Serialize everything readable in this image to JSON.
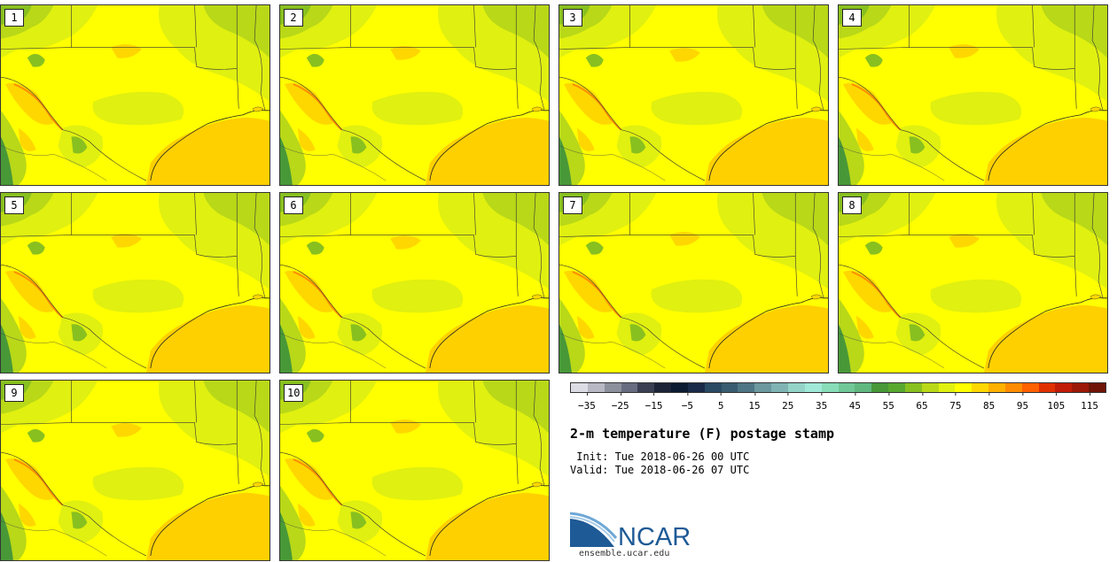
{
  "title": "2-m temperature (F) postage stamp",
  "init_line": " Init: Tue 2018-06-26 00 UTC",
  "valid_line": "Valid: Tue 2018-06-26 07 UTC",
  "panels": [
    "1",
    "2",
    "3",
    "4",
    "5",
    "6",
    "7",
    "8",
    "9",
    "10"
  ],
  "colorbar": {
    "ticks": [
      "-35",
      "-25",
      "-15",
      "-5",
      "5",
      "15",
      "25",
      "35",
      "45",
      "55",
      "65",
      "75",
      "85",
      "95",
      "105",
      "115"
    ],
    "min": -40,
    "max": 120,
    "step": 5,
    "colors": [
      "#dcdce4",
      "#b8b8c4",
      "#8c909c",
      "#686c80",
      "#3a3f52",
      "#1c2438",
      "#0c1a32",
      "#1a2a48",
      "#2a4a64",
      "#3a5c70",
      "#4e7684",
      "#6c98a0",
      "#80b4b4",
      "#94d4c8",
      "#a0e8d8",
      "#88dcb8",
      "#70c898",
      "#60b880",
      "#489838",
      "#58a830",
      "#88c020",
      "#b8d818",
      "#e0f010",
      "#ffff00",
      "#ffd700",
      "#ffb000",
      "#ff8c00",
      "#ff6000",
      "#e03000",
      "#c01c08",
      "#9c1808",
      "#701408"
    ]
  },
  "logo": {
    "text": "NCAR",
    "url": "ensemble.ucar.edu",
    "color": "#1e5a96"
  },
  "map_colors": {
    "background": "#ffff00",
    "cool": "#e0f010",
    "cooler": "#b8d818",
    "cold": "#88c020",
    "coldest": "#489838",
    "warm": "#ffd700",
    "hot": "#ff8c00",
    "gulf": "#ffd000"
  }
}
